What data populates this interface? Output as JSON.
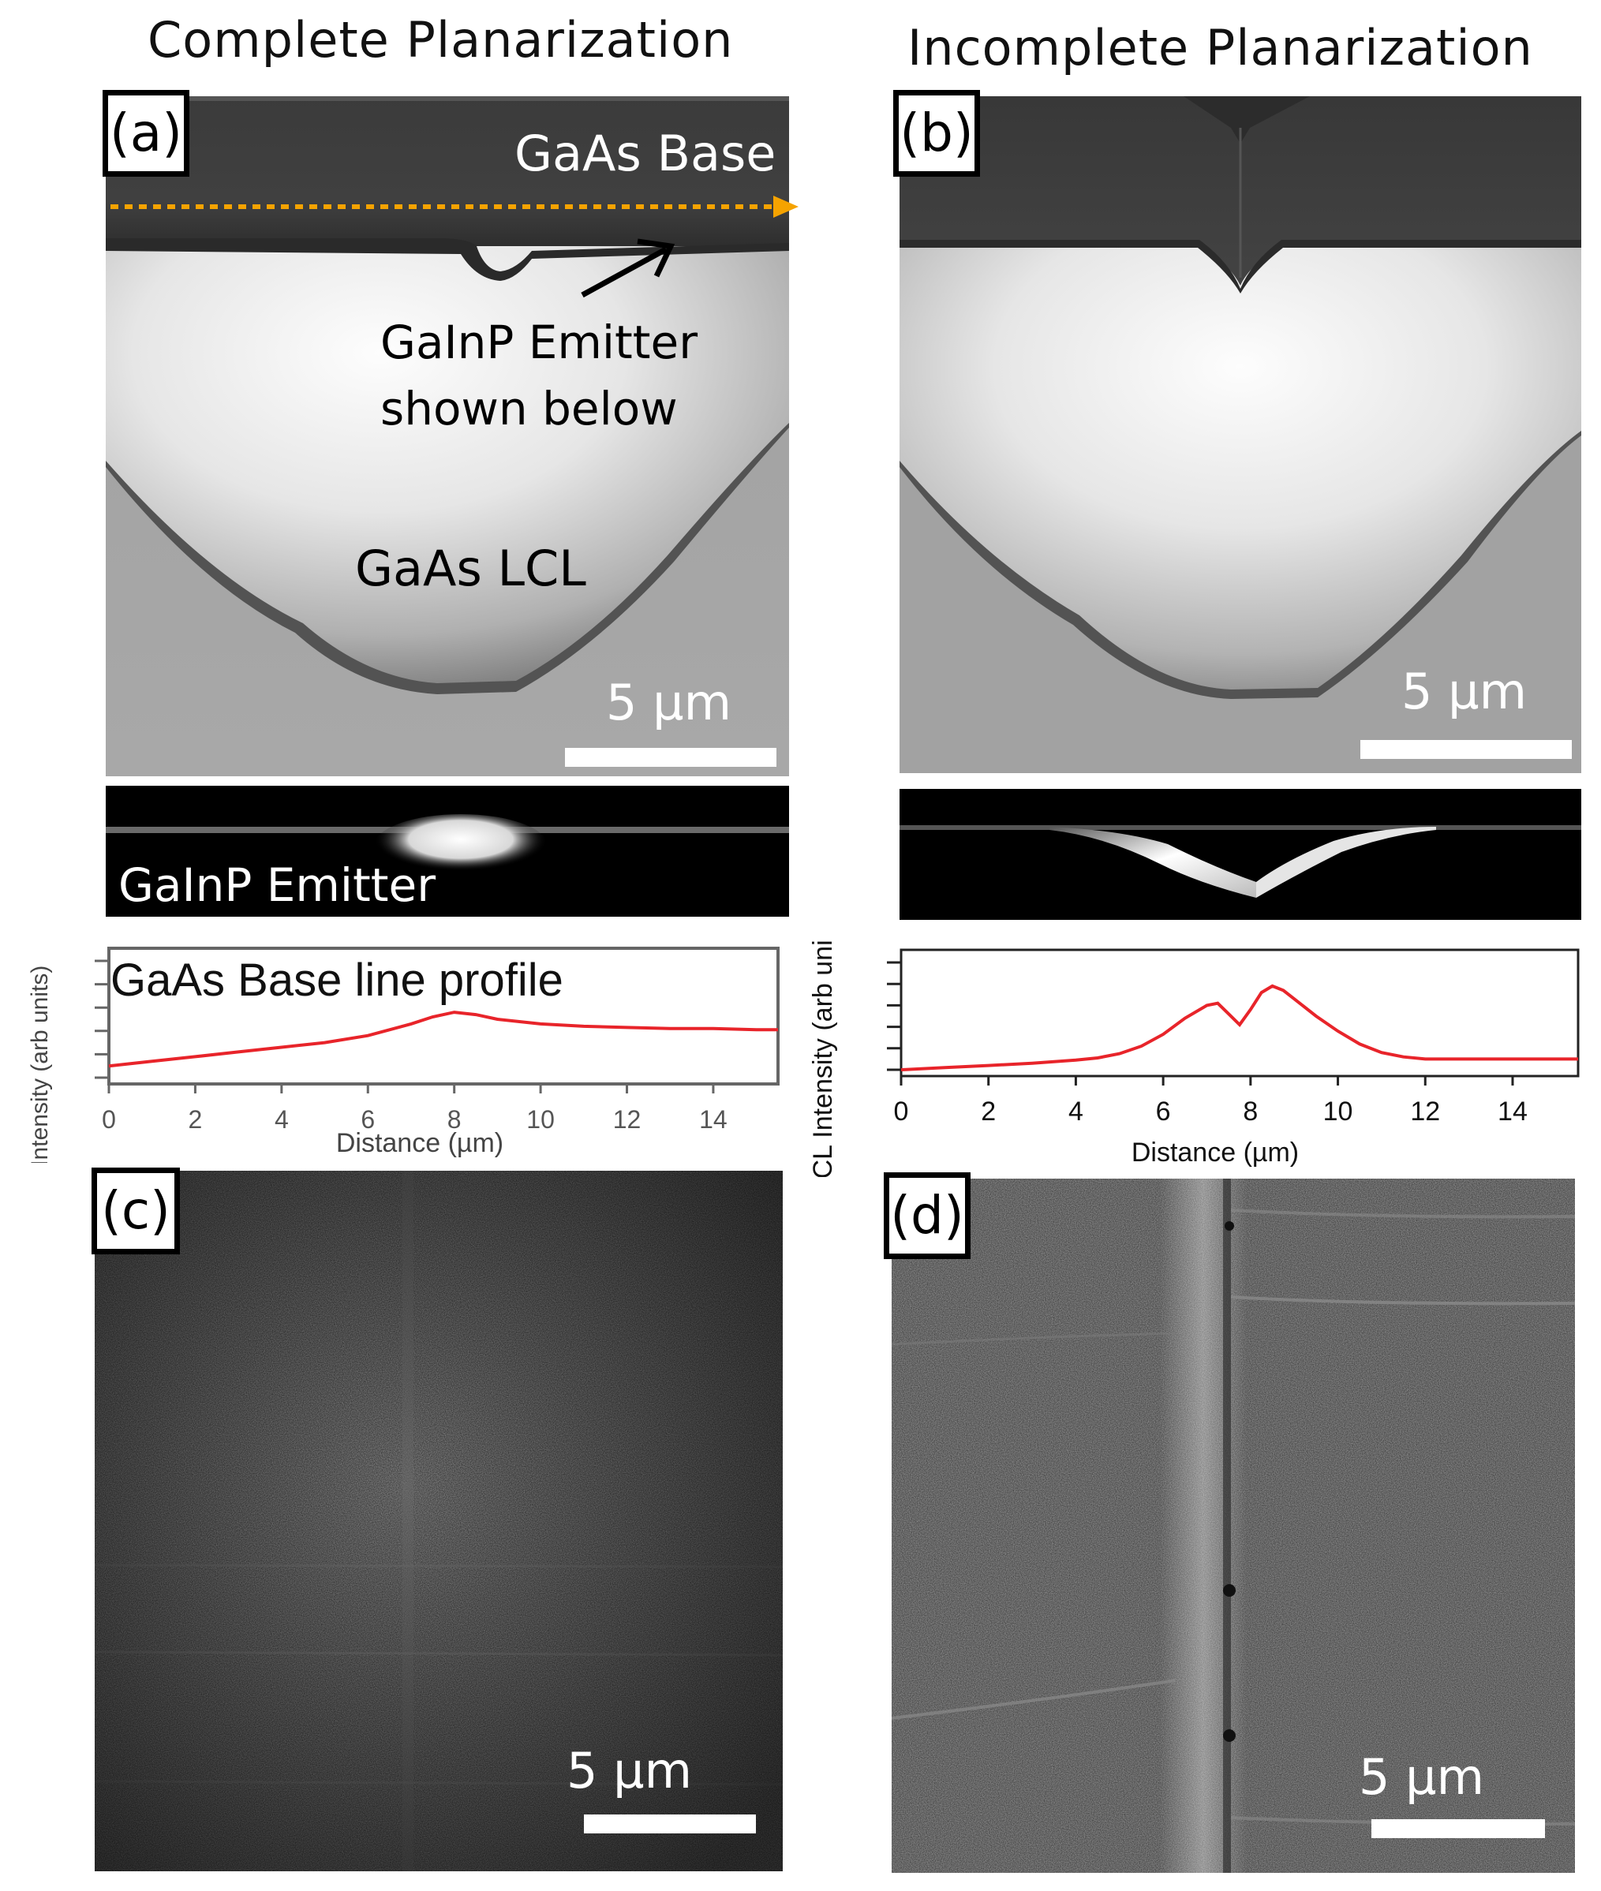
{
  "titles": {
    "left": "Complete Planarization",
    "right": "Incomplete Planarization"
  },
  "panels": {
    "a": {
      "label": "(a)",
      "gaas_base": "GaAs Base",
      "emitter_note_line1": "GaInP Emitter",
      "emitter_note_line2": "shown below",
      "lcl": "GaAs LCL",
      "scale": "5 µm"
    },
    "b": {
      "label": "(b)",
      "scale": "5 µm"
    },
    "c": {
      "label": "(c)",
      "scale": "5 µm"
    },
    "d": {
      "label": "(d)",
      "scale": "5 µm"
    }
  },
  "emitter_strip_label": "GaInP Emitter",
  "colors": {
    "line_profile": "#e8242a",
    "arrow_dotted": "#f5a300"
  },
  "chart_data": [
    {
      "type": "line",
      "title": "GaAs Base line profile",
      "xlabel": "Distance (µm)",
      "ylabel": "CL Intensity (arb units)",
      "xlim": [
        0,
        15.5
      ],
      "xticks": [
        "0",
        "2",
        "4",
        "6",
        "8",
        "10",
        "12",
        "14"
      ],
      "series": [
        {
          "x": [
            0,
            1,
            2,
            3,
            4,
            5,
            6,
            7,
            7.5,
            8,
            8.5,
            9,
            10,
            11,
            12,
            13,
            14,
            15,
            15.5
          ],
          "y": [
            0.1,
            0.14,
            0.18,
            0.22,
            0.26,
            0.3,
            0.36,
            0.46,
            0.52,
            0.56,
            0.54,
            0.5,
            0.46,
            0.44,
            0.43,
            0.42,
            0.42,
            0.41,
            0.41
          ]
        }
      ]
    },
    {
      "type": "line",
      "title": "",
      "xlabel": "Distance (µm)",
      "ylabel": "CL Intensity (arb units)",
      "xlim": [
        0,
        15.5
      ],
      "xticks": [
        "0",
        "2",
        "4",
        "6",
        "8",
        "10",
        "12",
        "14"
      ],
      "series": [
        {
          "x": [
            0,
            1,
            2,
            3,
            4,
            4.5,
            5,
            5.5,
            6,
            6.5,
            7,
            7.25,
            7.5,
            7.75,
            8,
            8.25,
            8.5,
            8.75,
            9,
            9.5,
            10,
            10.5,
            11,
            11.5,
            12,
            13,
            14,
            15,
            15.5
          ],
          "y": [
            0.0,
            0.02,
            0.04,
            0.06,
            0.09,
            0.11,
            0.15,
            0.22,
            0.33,
            0.48,
            0.6,
            0.62,
            0.52,
            0.42,
            0.56,
            0.72,
            0.78,
            0.74,
            0.66,
            0.5,
            0.36,
            0.24,
            0.16,
            0.12,
            0.1,
            0.1,
            0.1,
            0.1,
            0.1
          ]
        }
      ]
    }
  ]
}
